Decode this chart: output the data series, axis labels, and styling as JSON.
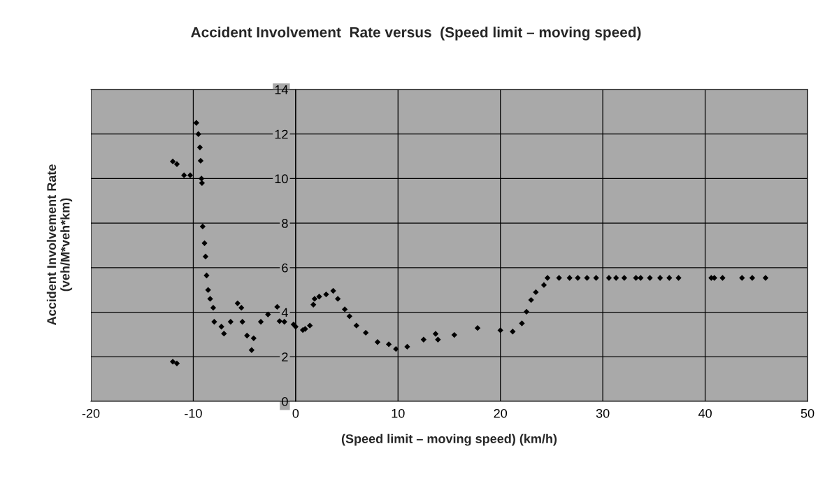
{
  "chart_data": {
    "type": "scatter",
    "title": "Accident Involvement  Rate versus  (Speed limit – moving speed)",
    "xlabel": "(Speed limit – moving speed) (km/h)",
    "ylabel": "Accident Involvement Rate\n(veh/M*veh*km)",
    "xlim": [
      -20,
      50
    ],
    "xticks": [
      -20,
      -10,
      0,
      10,
      20,
      30,
      40,
      50
    ],
    "ylim": [
      0,
      14
    ],
    "yticks": [
      0,
      2,
      4,
      6,
      8,
      10,
      12,
      14
    ],
    "grid": true,
    "marker": "diamond",
    "series": [
      {
        "color": "#000000",
        "x": [
          -12.0,
          -11.6,
          -10.9,
          -10.3,
          -12.0,
          -11.6,
          -9.7,
          -9.5,
          -9.35,
          -9.28,
          -9.2,
          -9.15,
          -9.08,
          -8.9,
          -8.8,
          -8.7,
          -8.55,
          -8.35,
          -8.05,
          -7.95,
          -7.25,
          -7.0,
          -6.35,
          -5.67,
          -5.3,
          -5.2,
          -4.75,
          -4.3,
          -4.1,
          -3.4,
          -2.7,
          -1.8,
          -1.57,
          -1.1,
          -0.2,
          0.0,
          0.7,
          0.93,
          1.39,
          1.73,
          1.85,
          2.3,
          2.98,
          3.67,
          4.12,
          4.8,
          5.26,
          5.94,
          6.85,
          8.0,
          9.1,
          9.8,
          10.9,
          12.5,
          13.67,
          13.9,
          15.5,
          17.77,
          20.0,
          21.2,
          22.1,
          22.55,
          23.0,
          23.46,
          24.25,
          24.6,
          25.73,
          26.76,
          27.56,
          28.46,
          29.35,
          30.6,
          31.3,
          32.1,
          33.24,
          33.7,
          34.6,
          35.6,
          36.5,
          37.4,
          40.6,
          40.9,
          41.7,
          43.6,
          44.6,
          45.9
        ],
        "values": [
          10.77,
          10.65,
          10.15,
          10.15,
          1.78,
          1.7,
          12.5,
          12.0,
          11.4,
          10.8,
          10.0,
          9.8,
          7.85,
          7.1,
          6.5,
          5.65,
          5.0,
          4.6,
          4.2,
          3.57,
          3.35,
          3.04,
          3.57,
          4.4,
          4.2,
          3.57,
          2.95,
          2.3,
          2.83,
          3.57,
          3.9,
          4.24,
          3.6,
          3.57,
          3.45,
          3.35,
          3.2,
          3.25,
          3.4,
          4.34,
          4.6,
          4.7,
          4.8,
          4.96,
          4.6,
          4.13,
          3.82,
          3.4,
          3.08,
          2.66,
          2.56,
          2.35,
          2.45,
          2.77,
          3.03,
          2.77,
          2.98,
          3.29,
          3.19,
          3.13,
          3.5,
          4.02,
          4.55,
          4.9,
          5.22,
          5.54,
          5.54,
          5.54,
          5.54,
          5.54,
          5.54,
          5.54,
          5.54,
          5.54,
          5.54,
          5.54,
          5.54,
          5.54,
          5.54,
          5.54,
          5.54,
          5.54,
          5.54,
          5.54,
          5.54,
          5.54
        ]
      }
    ]
  }
}
